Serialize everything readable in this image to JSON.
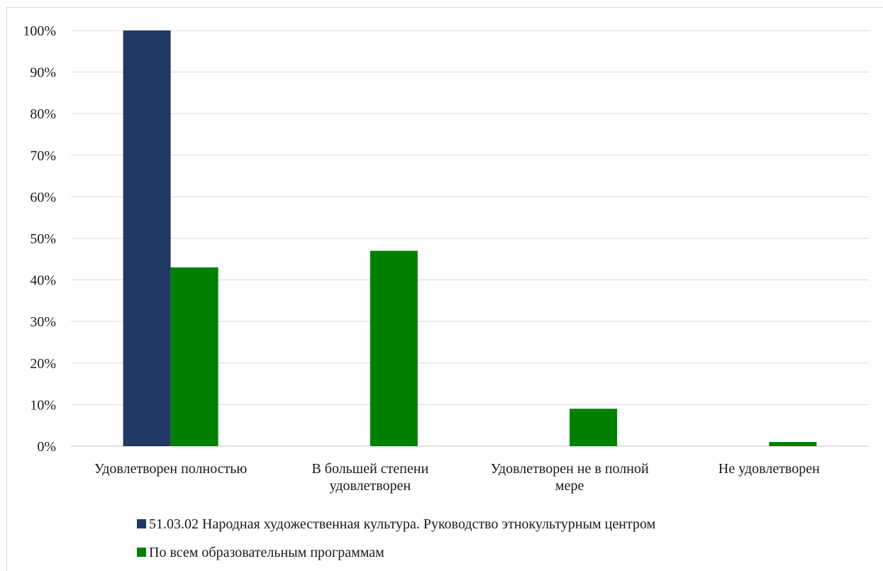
{
  "chart_data": {
    "type": "bar",
    "categories": [
      [
        "Удовлетворен полностью"
      ],
      [
        "В большей степени",
        "удовлетворен"
      ],
      [
        "Удовлетворен не в полной",
        "мере"
      ],
      [
        "Не удовлетворен"
      ]
    ],
    "y_tick_labels": [
      "0%",
      "10%",
      "20%",
      "30%",
      "40%",
      "50%",
      "60%",
      "70%",
      "80%",
      "90%",
      "100%"
    ],
    "ylim": [
      0,
      100
    ],
    "grid": true,
    "legend_placement": "bottom",
    "series": [
      {
        "name": "51.03.02 Народная художественная культура. Руководство этнокультурным центром",
        "color": "#203864",
        "values": [
          100,
          0,
          0,
          0
        ]
      },
      {
        "name": "По всем образовательным программам",
        "color": "#008000",
        "values": [
          43,
          47,
          9,
          1
        ]
      }
    ]
  }
}
